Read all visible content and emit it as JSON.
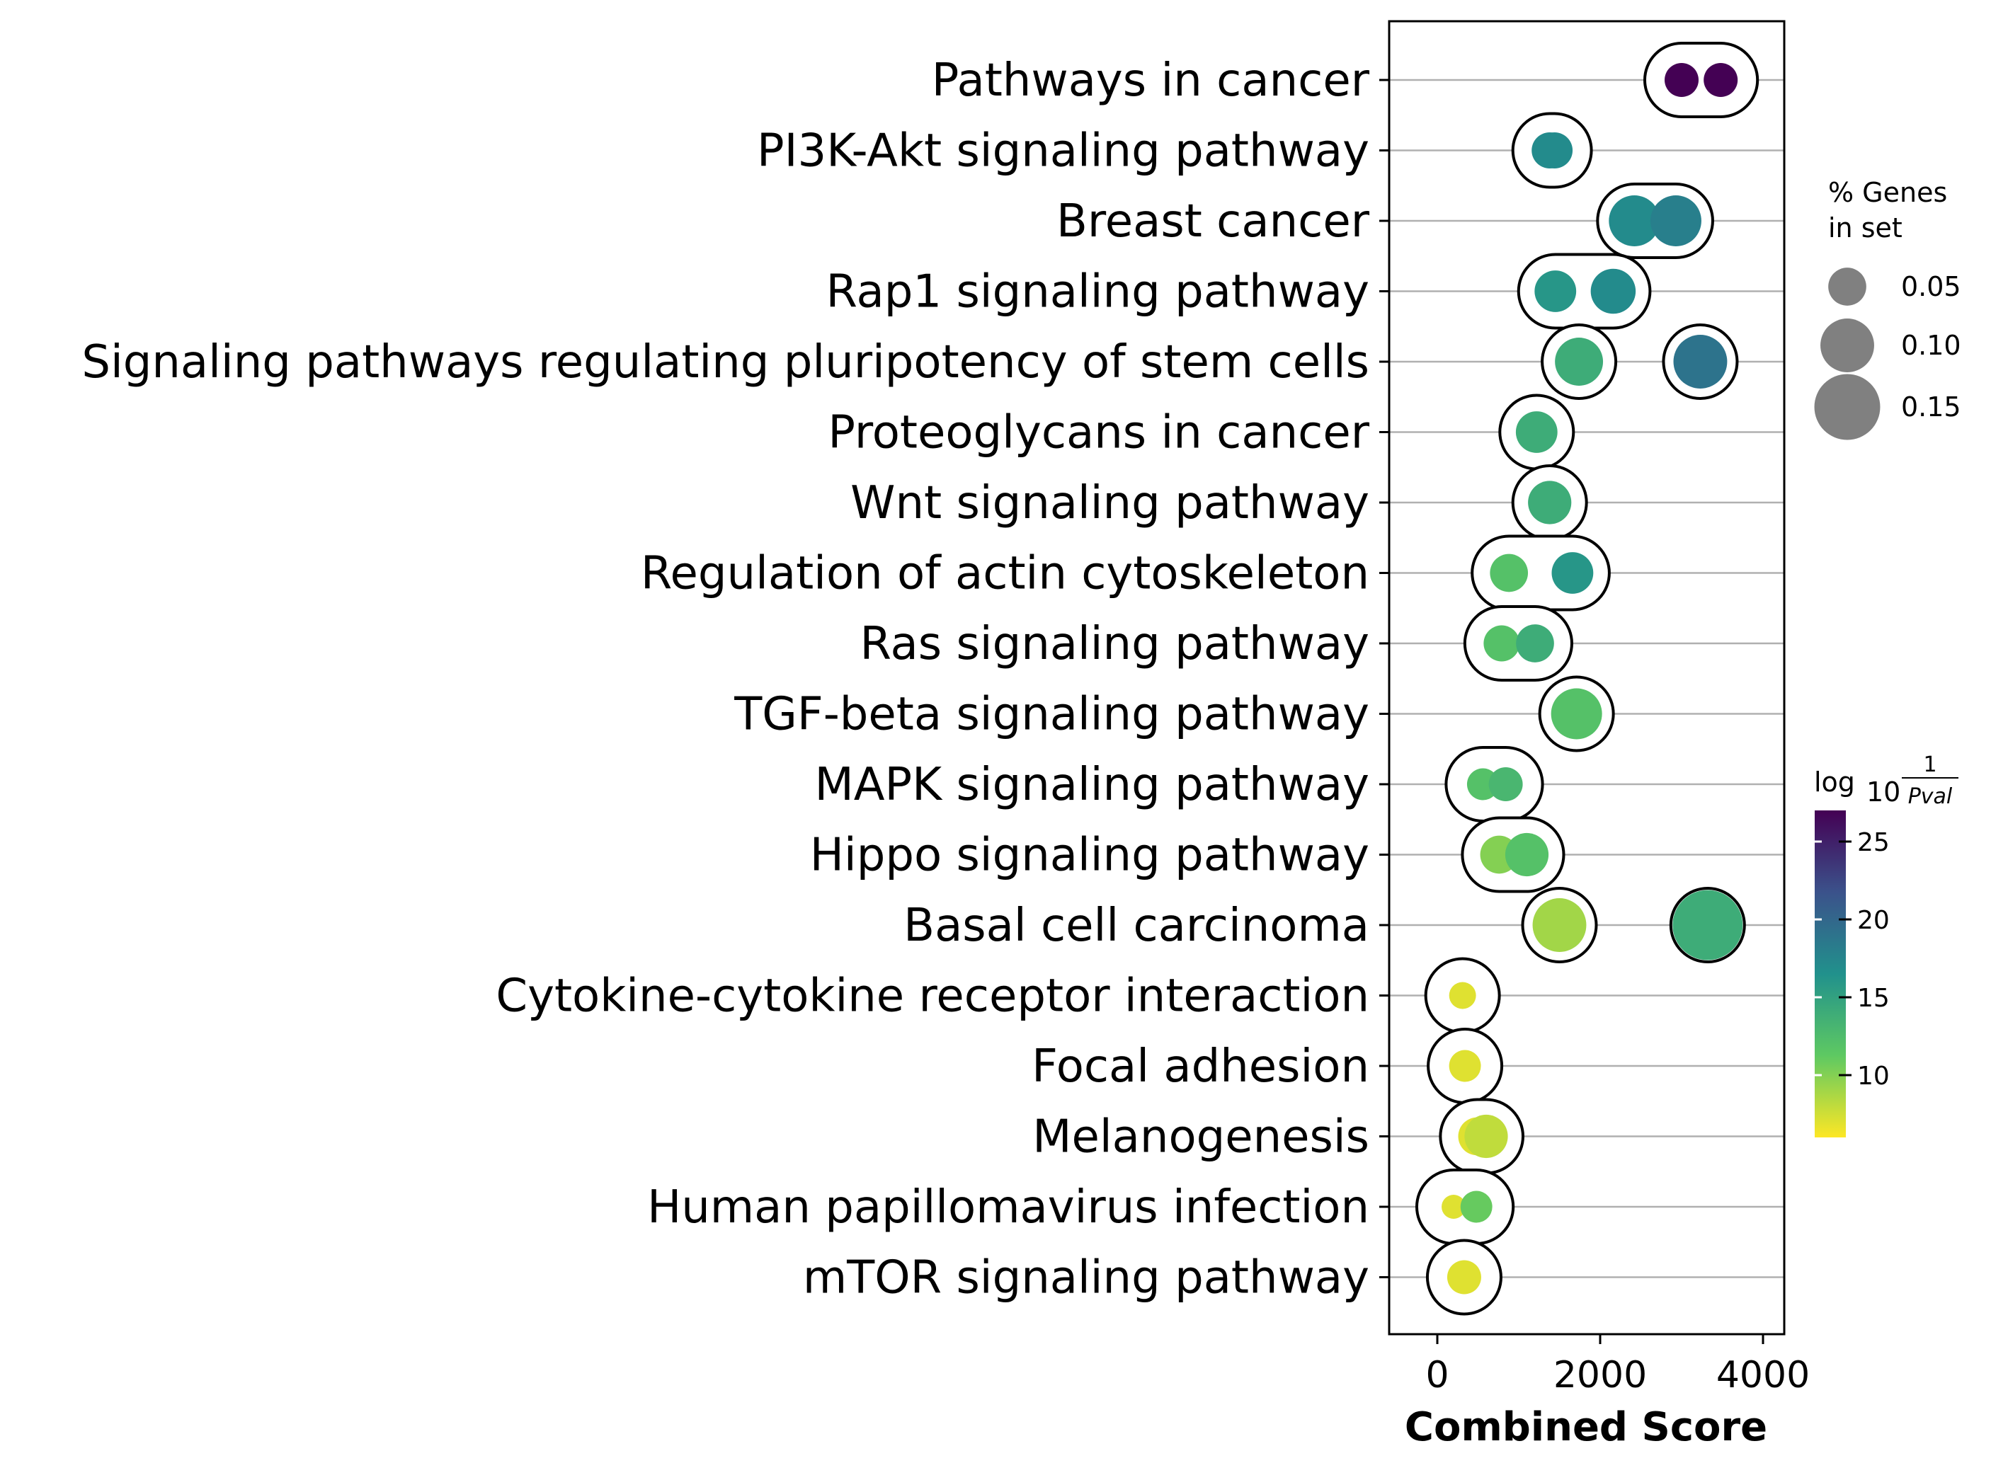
{
  "chart_data": {
    "type": "scatter",
    "xlabel": "Combined Score",
    "xlim": [
      -600,
      4300
    ],
    "xticks": [
      0,
      2000,
      4000
    ],
    "x_tick_labels": [
      "0",
      "2000",
      "4000"
    ],
    "grid": "horizontal",
    "categories": [
      "Pathways in cancer",
      "PI3K-Akt signaling pathway",
      "Breast cancer",
      "Rap1 signaling pathway",
      "Signaling pathways regulating pluripotency of stem cells",
      "Proteoglycans in cancer",
      "Wnt signaling pathway",
      "Regulation of actin cytoskeleton",
      "Ras signaling pathway",
      "TGF-beta signaling pathway",
      "MAPK signaling pathway",
      "Hippo signaling pathway",
      "Basal cell carcinoma",
      "Cytokine-cytokine receptor interaction",
      "Focal adhesion",
      "Melanogenesis",
      "Human papillomavirus infection",
      "mTOR signaling pathway"
    ],
    "points": [
      {
        "term": 0,
        "x": 3000,
        "pct": 0.04,
        "log10_inv_pval": 27
      },
      {
        "term": 0,
        "x": 3480,
        "pct": 0.04,
        "log10_inv_pval": 27
      },
      {
        "term": 1,
        "x": 1380,
        "pct": 0.045,
        "log10_inv_pval": 17
      },
      {
        "term": 1,
        "x": 1440,
        "pct": 0.045,
        "log10_inv_pval": 17
      },
      {
        "term": 2,
        "x": 2420,
        "pct": 0.09,
        "log10_inv_pval": 17
      },
      {
        "term": 2,
        "x": 2930,
        "pct": 0.09,
        "log10_inv_pval": 18
      },
      {
        "term": 3,
        "x": 1450,
        "pct": 0.06,
        "log10_inv_pval": 16
      },
      {
        "term": 3,
        "x": 2160,
        "pct": 0.07,
        "log10_inv_pval": 17
      },
      {
        "term": 4,
        "x": 1740,
        "pct": 0.08,
        "log10_inv_pval": 14
      },
      {
        "term": 4,
        "x": 3230,
        "pct": 0.1,
        "log10_inv_pval": 19
      },
      {
        "term": 5,
        "x": 1220,
        "pct": 0.06,
        "log10_inv_pval": 14
      },
      {
        "term": 6,
        "x": 1380,
        "pct": 0.065,
        "log10_inv_pval": 14
      },
      {
        "term": 7,
        "x": 880,
        "pct": 0.05,
        "log10_inv_pval": 12
      },
      {
        "term": 7,
        "x": 1660,
        "pct": 0.06,
        "log10_inv_pval": 16
      },
      {
        "term": 8,
        "x": 790,
        "pct": 0.045,
        "log10_inv_pval": 12
      },
      {
        "term": 8,
        "x": 1200,
        "pct": 0.05,
        "log10_inv_pval": 14
      },
      {
        "term": 9,
        "x": 1710,
        "pct": 0.09,
        "log10_inv_pval": 12
      },
      {
        "term": 10,
        "x": 560,
        "pct": 0.035,
        "log10_inv_pval": 12
      },
      {
        "term": 10,
        "x": 840,
        "pct": 0.04,
        "log10_inv_pval": 13
      },
      {
        "term": 11,
        "x": 760,
        "pct": 0.05,
        "log10_inv_pval": 10
      },
      {
        "term": 11,
        "x": 1100,
        "pct": 0.065,
        "log10_inv_pval": 12
      },
      {
        "term": 12,
        "x": 1500,
        "pct": 0.1,
        "log10_inv_pval": 9
      },
      {
        "term": 12,
        "x": 3320,
        "pct": 0.17,
        "log10_inv_pval": 14
      },
      {
        "term": 13,
        "x": 310,
        "pct": 0.025,
        "log10_inv_pval": 7
      },
      {
        "term": 14,
        "x": 340,
        "pct": 0.035,
        "log10_inv_pval": 7
      },
      {
        "term": 15,
        "x": 490,
        "pct": 0.05,
        "log10_inv_pval": 7
      },
      {
        "term": 15,
        "x": 600,
        "pct": 0.065,
        "log10_inv_pval": 8
      },
      {
        "term": 16,
        "x": 200,
        "pct": 0.02,
        "log10_inv_pval": 7
      },
      {
        "term": 16,
        "x": 480,
        "pct": 0.035,
        "log10_inv_pval": 11
      },
      {
        "term": 17,
        "x": 330,
        "pct": 0.04,
        "log10_inv_pval": 7
      }
    ],
    "size_legend": {
      "title_line1": "% Genes",
      "title_line2": "in set",
      "values": [
        0.05,
        0.1,
        0.15
      ],
      "labels": [
        "0.05",
        "0.10",
        "0.15"
      ]
    },
    "colorbar": {
      "title_base": "log",
      "title_sub": "10",
      "title_num": "1",
      "title_den": "Pval",
      "min": 6,
      "max": 27,
      "ticks": [
        10,
        15,
        20,
        25
      ],
      "tick_labels": [
        "10",
        "15",
        "20",
        "25"
      ],
      "colormap": "viridis-reversed"
    },
    "colors": {
      "grid": "#b0b0b0",
      "ring": "#000000",
      "legend_dot": "#808080"
    }
  }
}
